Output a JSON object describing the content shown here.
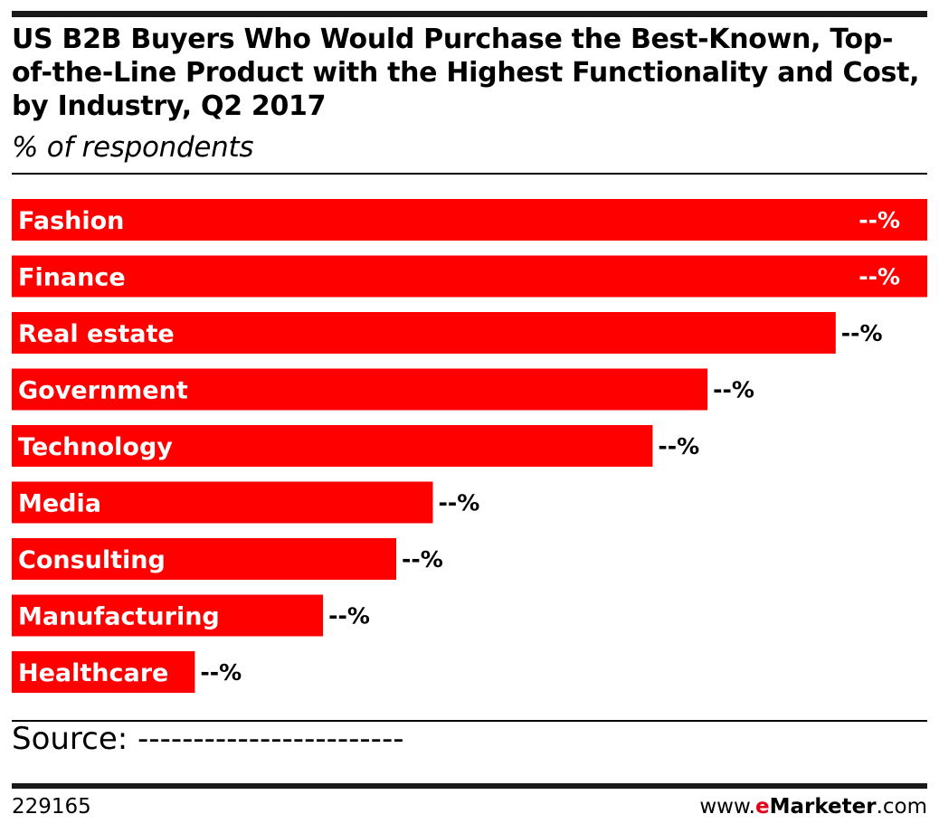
{
  "colors": {
    "bar": "#ff0000",
    "bar_label_text": "#ffffff",
    "value_outside_text": "#000000",
    "brand_accent": "#e2001a"
  },
  "header": {
    "title": "US B2B Buyers Who Would Purchase the Best-Known, Top-of-the-Line Product with the Highest Functionality and Cost, by Industry, Q2 2017",
    "subtitle": "% of respondents"
  },
  "chart_data": {
    "type": "bar",
    "orientation": "horizontal",
    "categories": [
      "Fashion",
      "Finance",
      "Real estate",
      "Government",
      "Technology",
      "Media",
      "Consulting",
      "Manufacturing",
      "Healthcare"
    ],
    "values": [
      100,
      100,
      90,
      76,
      70,
      46,
      42,
      34,
      20
    ],
    "value_labels": [
      "--%",
      "--%",
      "--%",
      "--%",
      "--%",
      "--%",
      "--%",
      "--%",
      "--%"
    ],
    "xlim": [
      0,
      100
    ],
    "grid": false,
    "legend": "none"
  },
  "footer": {
    "source": "Source: ------------------------",
    "chart_id": "229165",
    "brand_prefix": "www.",
    "brand_accent": "e",
    "brand_name": "Marketer",
    "brand_suffix": ".com"
  }
}
